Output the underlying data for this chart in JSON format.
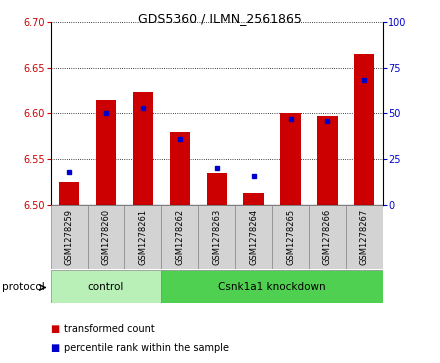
{
  "title": "GDS5360 / ILMN_2561865",
  "samples": [
    "GSM1278259",
    "GSM1278260",
    "GSM1278261",
    "GSM1278262",
    "GSM1278263",
    "GSM1278264",
    "GSM1278265",
    "GSM1278266",
    "GSM1278267"
  ],
  "transformed_counts": [
    6.525,
    6.615,
    6.623,
    6.58,
    6.535,
    6.513,
    6.6,
    6.597,
    6.665
  ],
  "percentile_ranks": [
    18,
    50,
    53,
    36,
    20,
    16,
    47,
    46,
    68
  ],
  "ylim_left": [
    6.5,
    6.7
  ],
  "ylim_right": [
    0,
    100
  ],
  "yticks_left": [
    6.5,
    6.55,
    6.6,
    6.65,
    6.7
  ],
  "yticks_right": [
    0,
    25,
    50,
    75,
    100
  ],
  "protocol_groups": [
    {
      "label": "control",
      "start": 0,
      "end": 3,
      "color": "#b8f0b8"
    },
    {
      "label": "Csnk1a1 knockdown",
      "start": 3,
      "end": 9,
      "color": "#50d050"
    }
  ],
  "bar_color": "#cc0000",
  "percentile_color": "#0000cc",
  "bar_baseline": 6.5,
  "tick_label_color_left": "#cc0000",
  "tick_label_color_right": "#0000cc",
  "legend_items": [
    {
      "label": "transformed count",
      "color": "#cc0000"
    },
    {
      "label": "percentile rank within the sample",
      "color": "#0000cc"
    }
  ]
}
